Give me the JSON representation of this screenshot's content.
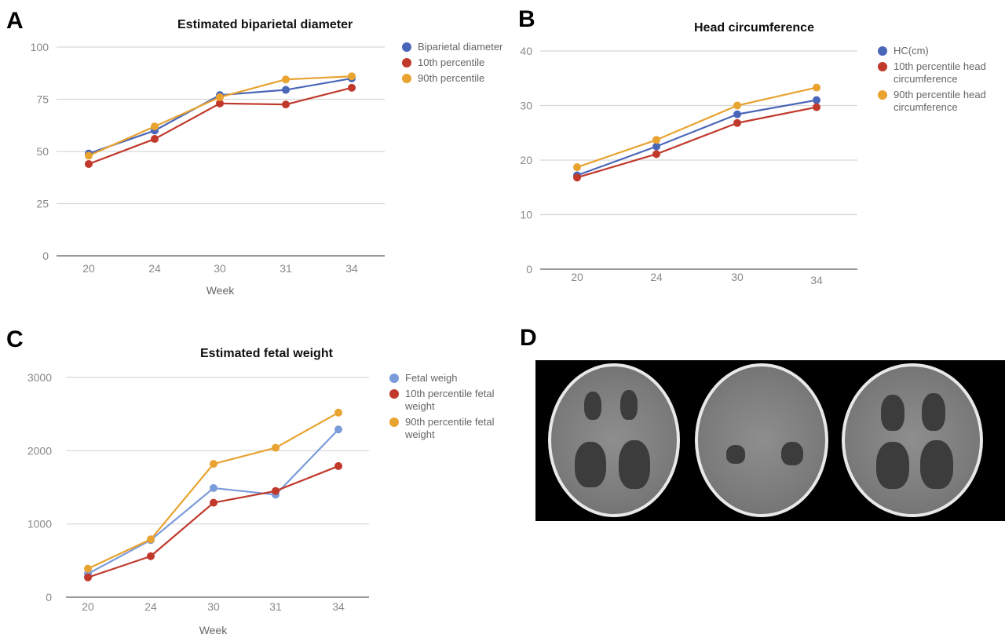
{
  "panels": {
    "a": "A",
    "b": "B",
    "c": "C",
    "d": "D"
  },
  "chart_data": [
    {
      "id": "A",
      "type": "line",
      "title": "Estimated biparietal diameter",
      "xlabel": "Week",
      "ylabel": "",
      "categories": [
        "20",
        "24",
        "30",
        "31",
        "34"
      ],
      "ylim": [
        0,
        100
      ],
      "yticks": [
        0,
        25,
        50,
        75,
        100
      ],
      "grid": true,
      "legend_position": "right",
      "series": [
        {
          "name": "Biparietal diameter",
          "color": "#4a66b8",
          "values": [
            49,
            60,
            77,
            79.5,
            85
          ]
        },
        {
          "name": "10th percentile",
          "color": "#c0392b",
          "values": [
            44,
            56,
            73,
            72.5,
            80.5
          ]
        },
        {
          "name": "90th percentile",
          "color": "#e8a330",
          "values": [
            48,
            62,
            76,
            84.5,
            86
          ]
        }
      ]
    },
    {
      "id": "B",
      "type": "line",
      "title": "Head circumference",
      "xlabel": "",
      "ylabel": "",
      "categories": [
        "20",
        "24",
        "30",
        "34"
      ],
      "ylim": [
        0,
        40
      ],
      "yticks": [
        0,
        10,
        20,
        30,
        40
      ],
      "grid": true,
      "legend_position": "right",
      "series": [
        {
          "name": "HC(cm)",
          "color": "#4a66b8",
          "values": [
            17.2,
            22.5,
            28.4,
            31
          ]
        },
        {
          "name": "10th percentile head circumference",
          "color": "#c0392b",
          "values": [
            16.8,
            21.1,
            26.8,
            29.7
          ]
        },
        {
          "name": "90th percentile head circumference",
          "color": "#e8a330",
          "values": [
            18.7,
            23.7,
            30,
            33.3
          ]
        }
      ]
    },
    {
      "id": "C",
      "type": "line",
      "title": "Estimated fetal weight",
      "xlabel": "Week",
      "ylabel": "",
      "categories": [
        "20",
        "24",
        "30",
        "31",
        "34"
      ],
      "ylim": [
        0,
        3000
      ],
      "yticks": [
        0,
        1000,
        2000,
        3000
      ],
      "grid": true,
      "legend_position": "right",
      "series": [
        {
          "name": "Fetal weigh",
          "color": "#7b9bd9",
          "values": [
            320,
            780,
            1490,
            1400,
            2290
          ]
        },
        {
          "name": "10th percentile fetal weight",
          "color": "#c0392b",
          "values": [
            270,
            560,
            1290,
            1450,
            1790
          ]
        },
        {
          "name": "90th percentile fetal weight",
          "color": "#e8a330",
          "values": [
            390,
            790,
            1820,
            2040,
            2520
          ]
        }
      ]
    }
  ]
}
